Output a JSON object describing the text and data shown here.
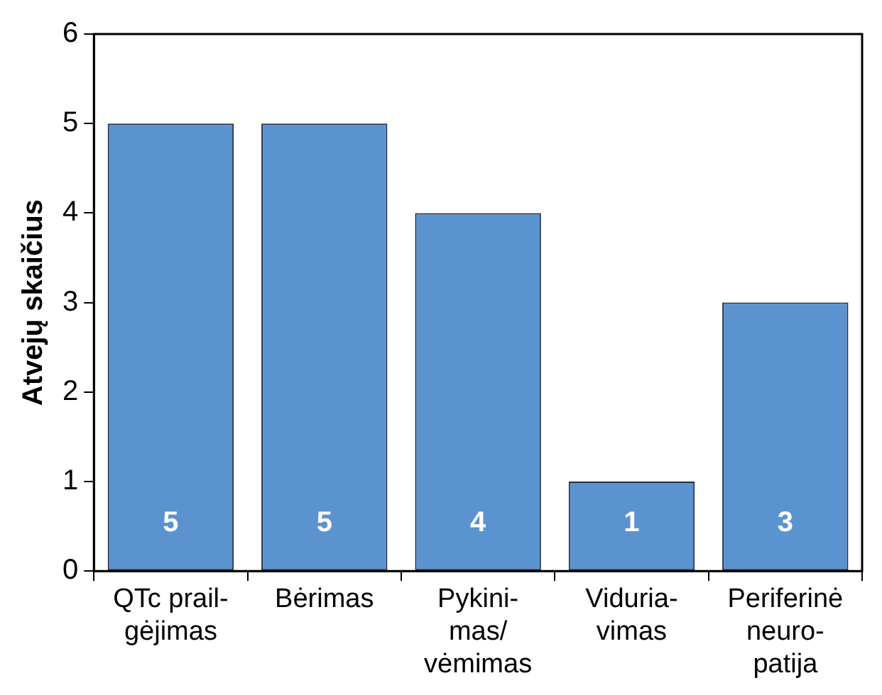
{
  "chart_data": {
    "type": "bar",
    "ylabel": "Atvejų skaičius",
    "categories": [
      "QTc prail-\ngėjimas",
      "Bėrimas",
      "Pykini-\nmas/\nvėmimas",
      "Viduria-\nvimas",
      "Periferinė\nneuro-\npatija"
    ],
    "values": [
      5,
      5,
      4,
      1,
      3
    ],
    "color": "#5b93d0",
    "ylim": [
      0,
      6
    ],
    "yticks": [
      0,
      1,
      2,
      3,
      4,
      5,
      6
    ],
    "data_labels": true
  }
}
